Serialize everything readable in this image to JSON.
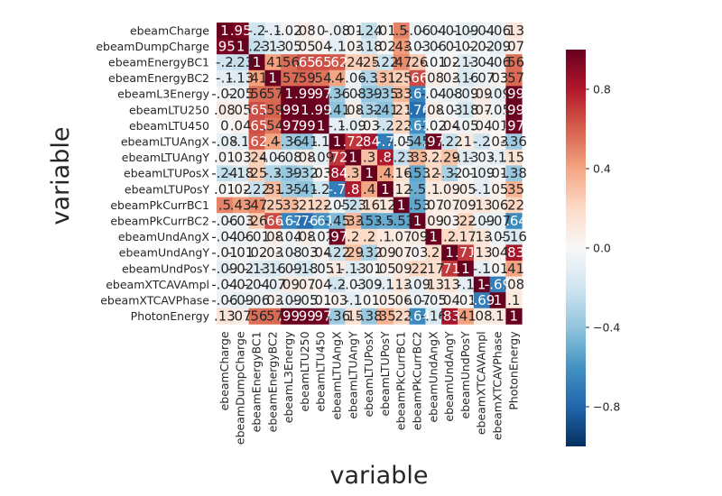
{
  "chart_data": {
    "type": "heatmap",
    "xlabel": "variable",
    "ylabel": "variable",
    "variables": [
      "ebeamCharge",
      "ebeamDumpCharge",
      "ebeamEnergyBC1",
      "ebeamEnergyBC2",
      "ebeamL3Energy",
      "ebeamLTU250",
      "ebeamLTU450",
      "ebeamLTUAngX",
      "ebeamLTUAngY",
      "ebeamLTUPosX",
      "ebeamLTUPosY",
      "ebeamPkCurrBC1",
      "ebeamPkCurrBC2",
      "ebeamUndAngX",
      "ebeamUndAngY",
      "ebeamUndPosY",
      "ebeamXTCAVAmpl",
      "ebeamXTCAVPhase",
      "PhotonEnergy"
    ],
    "matrix": [
      [
        1.0,
        0.95,
        -0.2,
        -0.1,
        -0.02,
        0.08,
        0.0,
        -0.08,
        0.01,
        -0.24,
        0.01,
        0.5,
        -0.06,
        -0.04,
        -0.01,
        -0.09,
        -0.04,
        -0.06,
        0.13
      ],
      [
        0.95,
        1.0,
        -0.23,
        -0.13,
        -0.05,
        0.05,
        0.04,
        -0.1,
        0.03,
        -0.18,
        0.02,
        0.43,
        -0.03,
        -0.06,
        -0.01,
        -0.02,
        -0.02,
        -0.09,
        0.07
      ],
      [
        -0.2,
        -0.23,
        1.0,
        0.41,
        0.56,
        0.65,
        0.65,
        0.62,
        0.24,
        0.25,
        -0.22,
        0.47,
        0.26,
        -0.01,
        0.02,
        -0.13,
        -0.04,
        -0.06,
        0.56
      ],
      [
        -0.1,
        -0.13,
        0.41,
        1.0,
        0.57,
        0.59,
        0.54,
        0.4,
        -0.06,
        -0.3,
        0.31,
        0.25,
        0.66,
        0.08,
        0.03,
        -0.16,
        -0.07,
        0.03,
        0.57
      ],
      [
        -0.02,
        -0.05,
        0.56,
        0.57,
        1.0,
        0.99,
        0.97,
        -0.36,
        -0.08,
        -0.39,
        -0.35,
        0.33,
        -0.67,
        -0.04,
        -0.08,
        -0.09,
        0.09,
        -0.09,
        0.99
      ],
      [
        0.08,
        0.05,
        0.65,
        0.59,
        0.99,
        1.0,
        0.99,
        -0.41,
        0.08,
        -0.32,
        -0.41,
        0.21,
        -0.76,
        0.08,
        -0.03,
        -0.18,
        0.07,
        -0.05,
        0.99
      ],
      [
        0.0,
        0.04,
        0.65,
        0.54,
        0.97,
        0.99,
        1.0,
        -0.1,
        -0.09,
        0.03,
        -0.2,
        0.22,
        -0.61,
        -0.02,
        0.04,
        -0.05,
        0.04,
        0.01,
        0.97
      ],
      [
        -0.08,
        -0.1,
        0.62,
        0.4,
        -0.36,
        -0.41,
        -0.1,
        1.0,
        0.72,
        0.84,
        -0.7,
        -0.05,
        -0.45,
        0.97,
        -0.22,
        0.1,
        -0.2,
        0.03,
        -0.36
      ],
      [
        0.01,
        0.03,
        0.24,
        -0.06,
        -0.08,
        0.08,
        -0.09,
        0.72,
        1.0,
        0.3,
        0.8,
        -0.23,
        0.33,
        0.2,
        0.29,
        -0.13,
        -0.03,
        -0.1,
        0.15
      ],
      [
        -0.24,
        -0.18,
        0.25,
        -0.3,
        -0.39,
        -0.32,
        0.03,
        0.84,
        0.3,
        1.0,
        0.4,
        0.16,
        -0.53,
        0.2,
        -0.32,
        -0.01,
        -0.09,
        0.01,
        -0.38
      ],
      [
        0.01,
        0.02,
        -0.22,
        0.31,
        -0.35,
        -0.41,
        -0.2,
        -0.7,
        0.8,
        0.4,
        1.0,
        0.12,
        -0.5,
        0.1,
        0.09,
        0.05,
        -0.1,
        0.05,
        0.35
      ],
      [
        0.5,
        0.43,
        0.47,
        0.25,
        0.33,
        0.21,
        0.22,
        -0.05,
        -0.23,
        0.16,
        0.12,
        1.0,
        -0.53,
        0.07,
        0.07,
        0.09,
        0.13,
        0.06,
        0.22
      ],
      [
        -0.06,
        -0.03,
        0.26,
        0.66,
        -0.67,
        -0.76,
        -0.61,
        -0.45,
        0.33,
        -0.53,
        -0.5,
        -0.53,
        1.0,
        0.09,
        0.03,
        0.22,
        -0.09,
        -0.07,
        -0.64
      ],
      [
        -0.04,
        -0.06,
        -0.01,
        0.08,
        -0.04,
        0.08,
        -0.02,
        0.97,
        0.2,
        0.2,
        0.1,
        0.07,
        0.09,
        1.0,
        0.2,
        0.17,
        0.13,
        -0.05,
        -0.16
      ],
      [
        -0.01,
        -0.01,
        0.02,
        0.03,
        -0.08,
        -0.03,
        0.04,
        -0.22,
        0.29,
        -0.32,
        0.09,
        0.07,
        0.03,
        0.2,
        1.0,
        0.71,
        0.13,
        0.04,
        0.83
      ],
      [
        -0.09,
        -0.02,
        -0.13,
        -0.16,
        -0.09,
        -0.18,
        -0.05,
        0.1,
        -0.13,
        -0.01,
        0.05,
        0.09,
        0.22,
        0.17,
        0.71,
        1.0,
        -0.1,
        0.01,
        0.41
      ],
      [
        -0.04,
        -0.02,
        -0.04,
        -0.07,
        0.09,
        0.07,
        0.04,
        -0.2,
        -0.03,
        -0.09,
        -0.1,
        0.13,
        -0.09,
        0.13,
        0.13,
        -0.1,
        1.0,
        -0.69,
        0.08
      ],
      [
        -0.06,
        -0.09,
        -0.06,
        0.03,
        -0.09,
        -0.05,
        0.01,
        0.03,
        -0.1,
        0.01,
        0.05,
        0.06,
        -0.07,
        -0.05,
        0.04,
        0.01,
        -0.69,
        1.0,
        0.1
      ],
      [
        0.13,
        0.07,
        0.56,
        0.57,
        0.99,
        0.99,
        0.97,
        -0.36,
        0.15,
        -0.38,
        0.35,
        0.22,
        -0.64,
        -0.16,
        0.83,
        0.41,
        0.08,
        0.1,
        1.0
      ]
    ],
    "colorbar": {
      "colormap": "RdBu_r",
      "range": [
        -1,
        1
      ],
      "ticks": [
        0.8,
        0.4,
        0.0,
        -0.4,
        -0.8
      ],
      "tick_labels": [
        "0.8",
        "0.4",
        "0.0",
        "−0.4",
        "−0.8"
      ]
    },
    "annotations": true,
    "grid": false
  }
}
